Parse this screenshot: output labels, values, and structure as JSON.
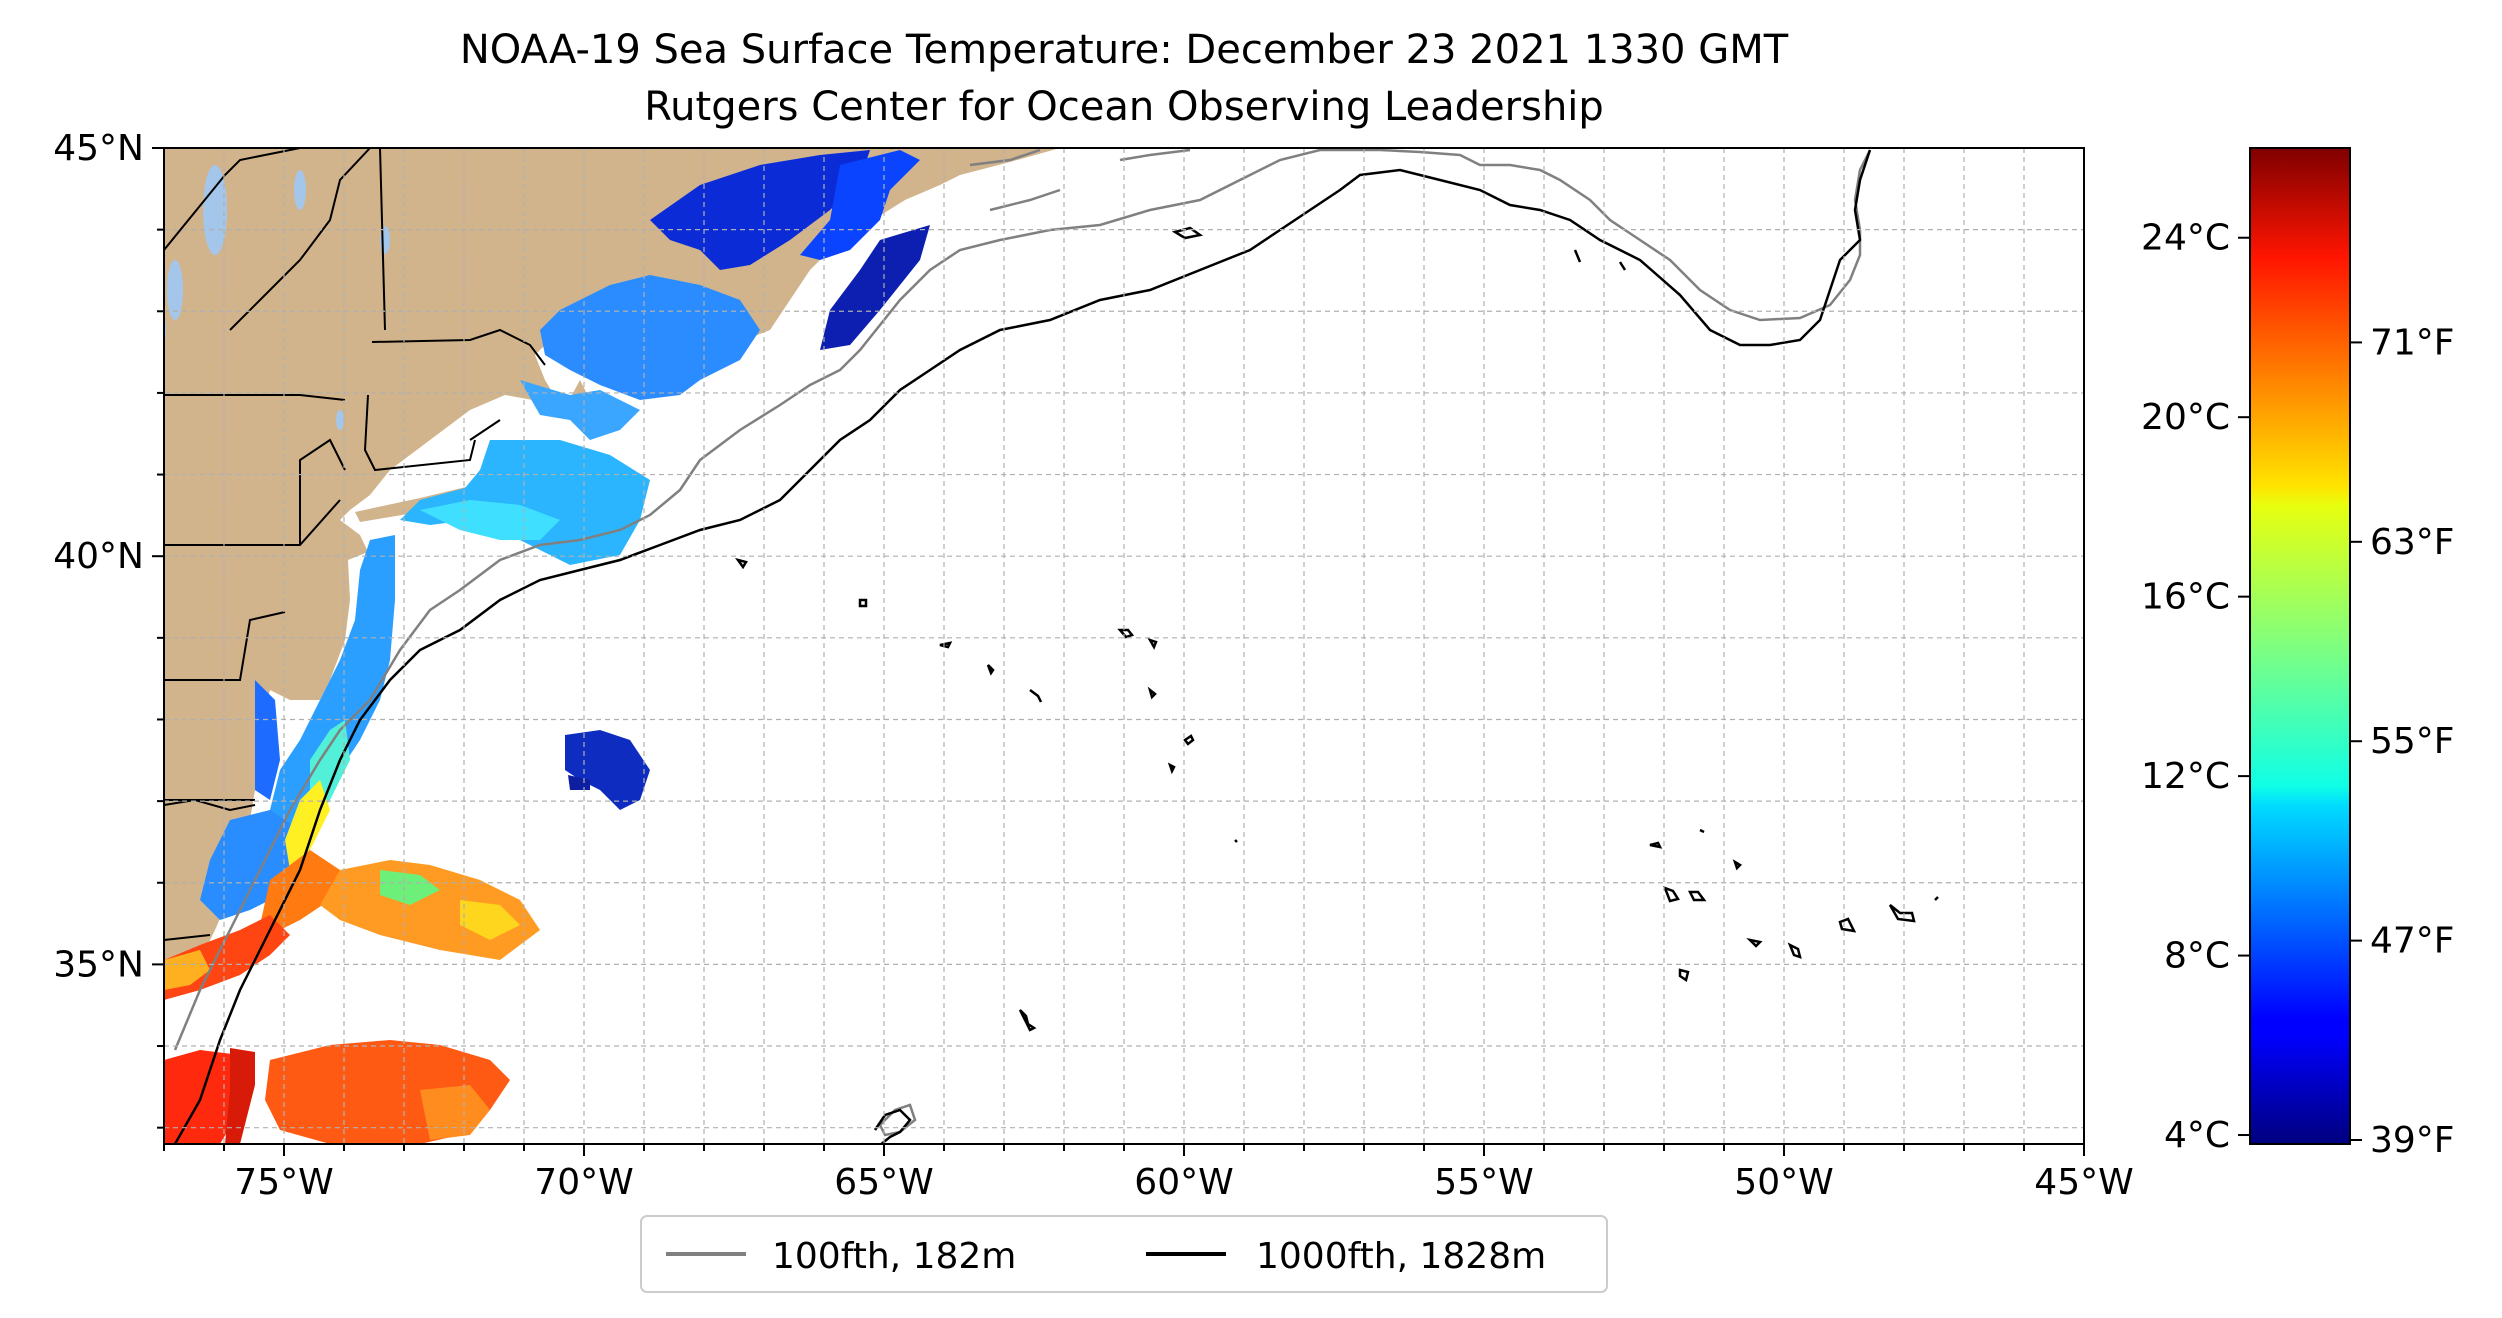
{
  "title": {
    "line1": "NOAA-19 Sea Surface Temperature: December 23 2021 1330 GMT",
    "line2": "Rutgers Center for Ocean Observing Leadership"
  },
  "map": {
    "lon_range": [
      -77,
      -45
    ],
    "lat_range": [
      32.8,
      45
    ],
    "grid": true,
    "land_color": "#d2b48c",
    "lake_color": "#a4c6ea",
    "ocean_color": "#ffffff",
    "lon_ticks": [
      {
        "value": -75,
        "label": "75°W"
      },
      {
        "value": -70,
        "label": "70°W"
      },
      {
        "value": -65,
        "label": "65°W"
      },
      {
        "value": -60,
        "label": "60°W"
      },
      {
        "value": -55,
        "label": "55°W"
      },
      {
        "value": -50,
        "label": "50°W"
      },
      {
        "value": -45,
        "label": "45°W"
      }
    ],
    "lat_ticks": [
      {
        "value": 45,
        "label": "45°N"
      },
      {
        "value": 40,
        "label": "40°N"
      },
      {
        "value": 35,
        "label": "35°N"
      }
    ]
  },
  "legend": {
    "position": "bottom-center",
    "items": [
      {
        "label": "100fth, 182m",
        "color": "#808080"
      },
      {
        "label": "1000fth, 1828m",
        "color": "#000000"
      }
    ]
  },
  "colorbar": {
    "colormap": "jet",
    "range_c": [
      3.8,
      26
    ],
    "celsius_ticks": [
      {
        "value": 4,
        "label": "4°C"
      },
      {
        "value": 8,
        "label": "8°C"
      },
      {
        "value": 12,
        "label": "12°C"
      },
      {
        "value": 16,
        "label": "16°C"
      },
      {
        "value": 20,
        "label": "20°C"
      },
      {
        "value": 24,
        "label": "24°C"
      }
    ],
    "fahrenheit_ticks": [
      {
        "value": 39,
        "label": "39°F"
      },
      {
        "value": 47,
        "label": "47°F"
      },
      {
        "value": 55,
        "label": "55°F"
      },
      {
        "value": 63,
        "label": "63°F"
      },
      {
        "value": 71,
        "label": "71°F"
      }
    ]
  }
}
